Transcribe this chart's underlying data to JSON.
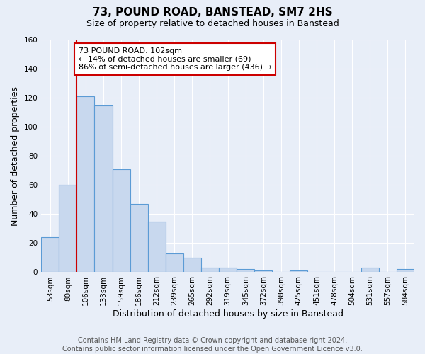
{
  "title": "73, POUND ROAD, BANSTEAD, SM7 2HS",
  "subtitle": "Size of property relative to detached houses in Banstead",
  "xlabel": "Distribution of detached houses by size in Banstead",
  "ylabel": "Number of detached properties",
  "bar_labels": [
    "53sqm",
    "80sqm",
    "106sqm",
    "133sqm",
    "159sqm",
    "186sqm",
    "212sqm",
    "239sqm",
    "265sqm",
    "292sqm",
    "319sqm",
    "345sqm",
    "372sqm",
    "398sqm",
    "425sqm",
    "451sqm",
    "478sqm",
    "504sqm",
    "531sqm",
    "557sqm",
    "584sqm"
  ],
  "bar_values": [
    24,
    60,
    121,
    115,
    71,
    47,
    35,
    13,
    10,
    3,
    3,
    2,
    1,
    0,
    1,
    0,
    0,
    0,
    3,
    0,
    2
  ],
  "bar_color": "#c8d8ee",
  "bar_edge_color": "#5b9bd5",
  "vline_color": "#cc0000",
  "ylim": [
    0,
    160
  ],
  "yticks": [
    0,
    20,
    40,
    60,
    80,
    100,
    120,
    140,
    160
  ],
  "annotation_title": "73 POUND ROAD: 102sqm",
  "annotation_line2": "← 14% of detached houses are smaller (69)",
  "annotation_line3": "86% of semi-detached houses are larger (436) →",
  "annotation_box_color": "#ffffff",
  "annotation_box_edge": "#cc0000",
  "footer_line1": "Contains HM Land Registry data © Crown copyright and database right 2024.",
  "footer_line2": "Contains public sector information licensed under the Open Government Licence v3.0.",
  "background_color": "#e8eef8",
  "grid_color": "#ffffff",
  "title_fontsize": 11,
  "subtitle_fontsize": 9,
  "axis_label_fontsize": 9,
  "tick_fontsize": 7.5,
  "footer_fontsize": 7,
  "annotation_fontsize": 8
}
